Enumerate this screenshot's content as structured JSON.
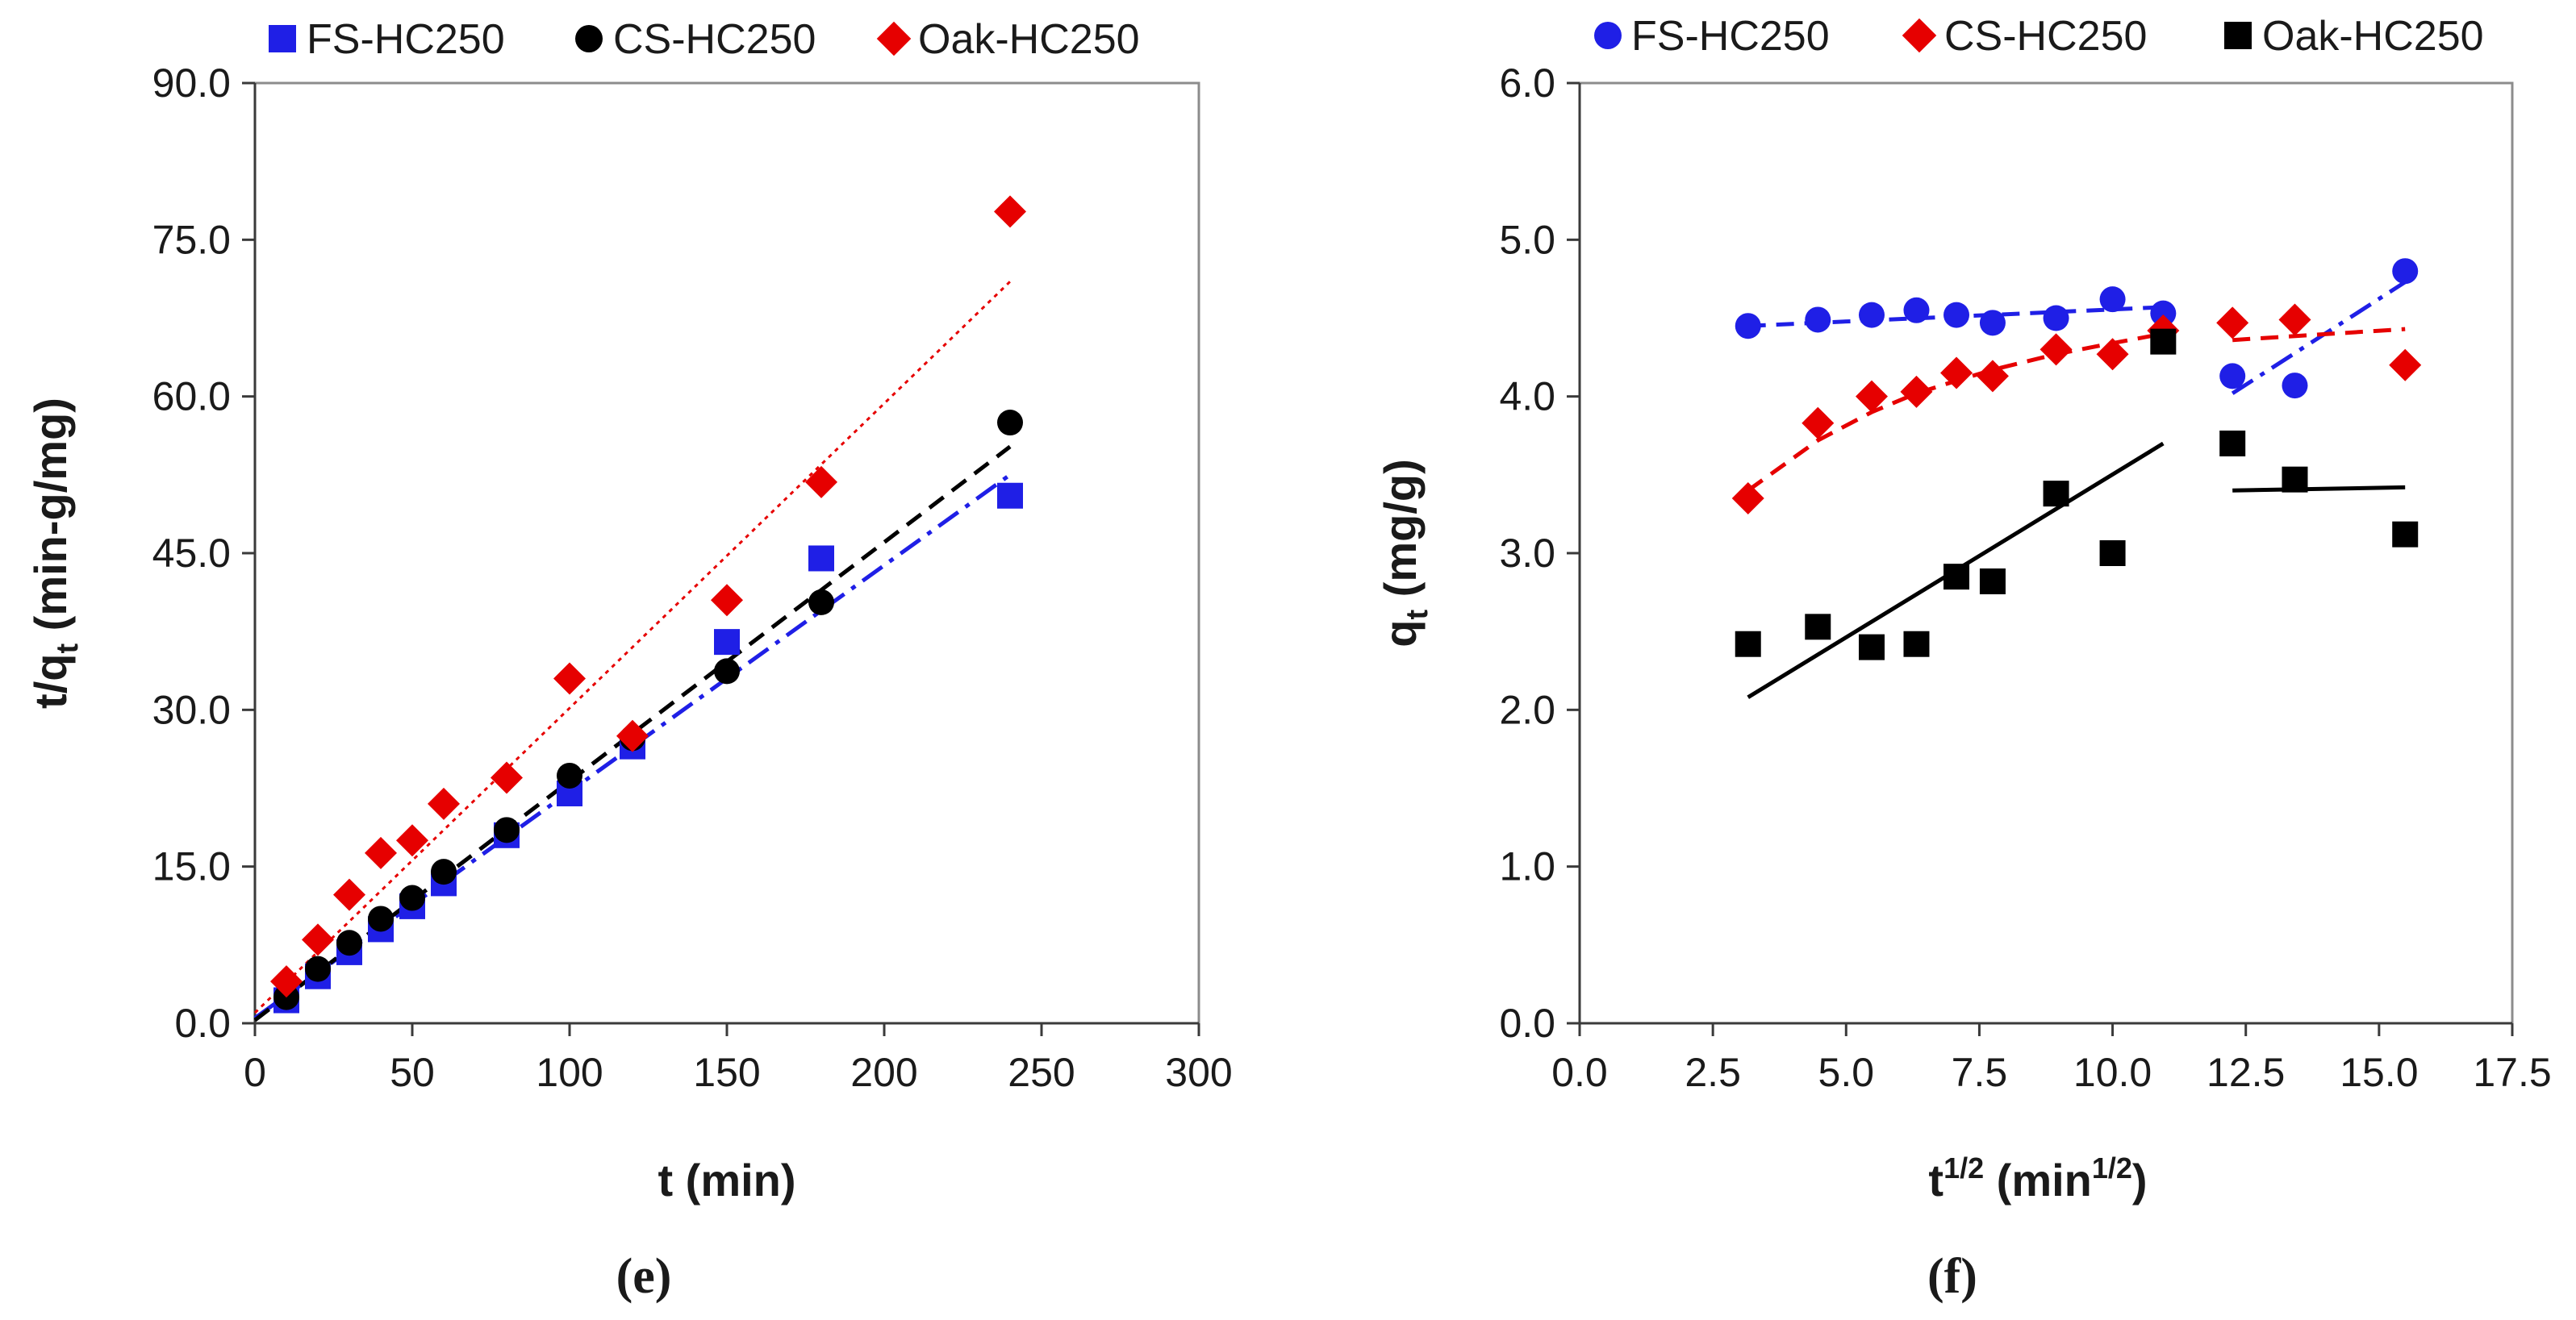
{
  "chart_data": [
    {
      "type": "scatter",
      "panel_label": "(e)",
      "xlabel": "t (min)",
      "ylabel_main": "t/q",
      "ylabel_sub": "t",
      "ylabel_rest": " (min-g/mg)",
      "xlim": [
        0,
        300
      ],
      "ylim": [
        0,
        90
      ],
      "x_ticks": [
        "0",
        "50",
        "100",
        "150",
        "200",
        "250",
        "300"
      ],
      "y_ticks": [
        "0.0",
        "15.0",
        "30.0",
        "45.0",
        "60.0",
        "75.0",
        "90.0"
      ],
      "grid": false,
      "legend_position": "top",
      "series": [
        {
          "name": "FS-HC250",
          "marker": "square",
          "color": "#1f1fe6",
          "x": [
            10,
            20,
            30,
            40,
            50,
            60,
            80,
            100,
            120,
            150,
            180,
            240
          ],
          "y": [
            2.2,
            4.5,
            6.8,
            9.0,
            11.2,
            13.4,
            18.0,
            22.0,
            26.5,
            36.5,
            44.5,
            50.5
          ]
        },
        {
          "name": "CS-HC250",
          "marker": "circle",
          "color": "#000000",
          "x": [
            10,
            20,
            30,
            40,
            50,
            60,
            80,
            100,
            120,
            150,
            180,
            240
          ],
          "y": [
            2.5,
            5.2,
            7.7,
            10.0,
            12.0,
            14.5,
            18.5,
            23.7,
            27.3,
            33.7,
            40.3,
            57.5
          ]
        },
        {
          "name": "Oak-HC250",
          "marker": "diamond",
          "color": "#e60000",
          "x": [
            10,
            20,
            30,
            40,
            50,
            60,
            80,
            100,
            120,
            150,
            180,
            240
          ],
          "y": [
            4.0,
            8.0,
            12.3,
            16.3,
            17.5,
            21.0,
            23.5,
            33.0,
            27.5,
            40.5,
            51.8,
            77.7
          ]
        }
      ],
      "fit_lines": [
        {
          "series": "FS-HC250",
          "style": "dash-dot",
          "color": "#1f1fe6",
          "x": [
            0,
            240
          ],
          "y": [
            0.5,
            52.5
          ]
        },
        {
          "series": "CS-HC250",
          "style": "dashed",
          "color": "#000000",
          "x": [
            0,
            240
          ],
          "y": [
            0.3,
            55.2
          ]
        },
        {
          "series": "Oak-HC250",
          "style": "dotted",
          "color": "#e60000",
          "x": [
            0,
            240
          ],
          "y": [
            1.0,
            71.0
          ]
        }
      ]
    },
    {
      "type": "scatter",
      "panel_label": "(f)",
      "xlabel_main": "t",
      "xlabel_sup": "1/2",
      "xlabel_mid": " (min",
      "xlabel_sup2": "1/2",
      "xlabel_end": ")",
      "ylabel_main": "q",
      "ylabel_sub": "t",
      "ylabel_rest": " (mg/g)",
      "xlim": [
        0,
        17.5
      ],
      "ylim": [
        0,
        6
      ],
      "x_ticks": [
        "0.0",
        "2.5",
        "5.0",
        "7.5",
        "10.0",
        "12.5",
        "15.0",
        "17.5"
      ],
      "y_ticks": [
        "0.0",
        "1.0",
        "2.0",
        "3.0",
        "4.0",
        "5.0",
        "6.0"
      ],
      "grid": false,
      "legend_position": "top",
      "series": [
        {
          "name": "FS-HC250",
          "marker": "circle",
          "color": "#1f1fe6",
          "x": [
            3.16,
            4.47,
            5.48,
            6.32,
            7.07,
            7.75,
            8.94,
            10.0,
            10.95,
            12.25,
            13.42,
            15.49
          ],
          "y": [
            4.45,
            4.49,
            4.52,
            4.55,
            4.52,
            4.47,
            4.5,
            4.62,
            4.53,
            4.13,
            4.07,
            4.8
          ]
        },
        {
          "name": "CS-HC250",
          "marker": "diamond",
          "color": "#e60000",
          "x": [
            3.16,
            4.47,
            5.48,
            6.32,
            7.07,
            7.75,
            8.94,
            10.0,
            10.95,
            12.25,
            13.42,
            15.49
          ],
          "y": [
            3.35,
            3.83,
            4.0,
            4.03,
            4.15,
            4.13,
            4.3,
            4.27,
            4.42,
            4.47,
            4.49,
            4.2
          ]
        },
        {
          "name": "Oak-HC250",
          "marker": "square",
          "color": "#000000",
          "x": [
            3.16,
            4.47,
            5.48,
            6.32,
            7.07,
            7.75,
            8.94,
            10.0,
            10.95,
            12.25,
            13.42,
            15.49
          ],
          "y": [
            2.42,
            2.53,
            2.4,
            2.42,
            2.85,
            2.82,
            3.38,
            3.0,
            4.35,
            3.7,
            3.47,
            3.12
          ]
        }
      ],
      "fit_lines": [
        {
          "series": "FS-HC250",
          "style": "dashed",
          "color": "#1f1fe6",
          "x": [
            3.16,
            10.95
          ],
          "y": [
            4.45,
            4.57
          ]
        },
        {
          "series": "FS-HC250",
          "style": "dash-dot",
          "color": "#1f1fe6",
          "x": [
            12.25,
            15.49
          ],
          "y": [
            4.02,
            4.73
          ]
        },
        {
          "series": "CS-HC250",
          "style": "dashed",
          "color": "#e60000",
          "curve": true,
          "x": [
            3.16,
            4.47,
            5.48,
            6.32,
            7.07,
            7.75,
            8.94,
            10.0,
            10.95
          ],
          "y": [
            3.4,
            3.72,
            3.9,
            4.02,
            4.1,
            4.17,
            4.27,
            4.34,
            4.4
          ]
        },
        {
          "series": "CS-HC250",
          "style": "dashed",
          "color": "#e60000",
          "x": [
            12.25,
            15.49
          ],
          "y": [
            4.36,
            4.43
          ]
        },
        {
          "series": "Oak-HC250",
          "style": "solid",
          "color": "#000000",
          "x": [
            3.16,
            10.95
          ],
          "y": [
            2.08,
            3.7
          ]
        },
        {
          "series": "Oak-HC250",
          "style": "solid",
          "color": "#000000",
          "x": [
            12.25,
            15.49
          ],
          "y": [
            3.4,
            3.42
          ]
        }
      ]
    }
  ]
}
